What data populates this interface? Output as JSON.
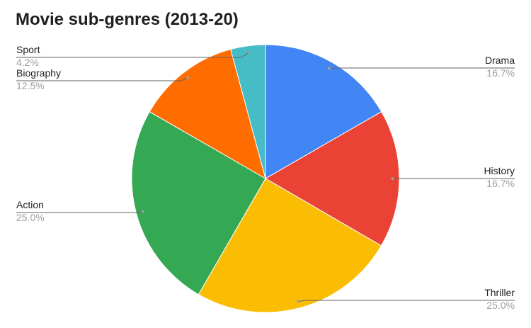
{
  "chart_data": {
    "type": "pie",
    "title": "Movie sub-genres (2013-20)",
    "slices": [
      {
        "label": "Drama",
        "value": 16.7,
        "percent_label": "16.7%",
        "color": "#4285F4"
      },
      {
        "label": "History",
        "value": 16.7,
        "percent_label": "16.7%",
        "color": "#EA4335"
      },
      {
        "label": "Thriller",
        "value": 25.0,
        "percent_label": "25.0%",
        "color": "#FBBC04"
      },
      {
        "label": "Action",
        "value": 25.0,
        "percent_label": "25.0%",
        "color": "#34A853"
      },
      {
        "label": "Biography",
        "value": 12.5,
        "percent_label": "12.5%",
        "color": "#FF6D01"
      },
      {
        "label": "Sport",
        "value": 4.2,
        "percent_label": "4.2%",
        "color": "#46BDC6"
      }
    ],
    "start_angle": "12 o'clock",
    "direction": "clockwise",
    "legend": "labeled callouts"
  }
}
